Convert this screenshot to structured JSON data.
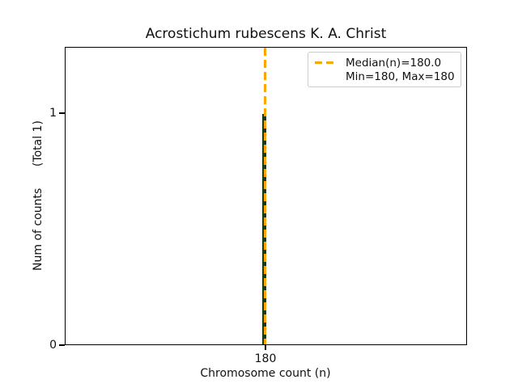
{
  "title": "Acrostichum rubescens K. A. Christ",
  "axes": {
    "xlabel": "Chromosome count (n)",
    "ylabel": "Num of counts      (Total 1)",
    "xticks": [
      "180"
    ],
    "yticks": [
      "0",
      "1"
    ]
  },
  "legend": {
    "items": [
      {
        "label": "Median(n)=180.0",
        "marker": "orange-dashed-line"
      },
      {
        "label": "Min=180, Max=180",
        "marker": "none"
      }
    ]
  },
  "colors": {
    "median_line": "#ffa500",
    "bar": "#17391c",
    "spine": "#000000",
    "legend_border": "#cccccc",
    "background": "#ffffff"
  },
  "chart_data": {
    "type": "bar",
    "title": "Acrostichum rubescens K. A. Christ",
    "xlabel": "Chromosome count (n)",
    "ylabel": "Num of counts (Total 1)",
    "x": [
      180
    ],
    "values": [
      1
    ],
    "total_counts": 1,
    "median": 180.0,
    "min": 180,
    "max": 180,
    "xticks": [
      180
    ],
    "yticks": [
      0,
      1
    ],
    "ylim": [
      0,
      1.29
    ],
    "bar_color": "#17391c",
    "median_line": {
      "x": 180,
      "color": "#ffa500",
      "style": "dashed"
    },
    "grid": false,
    "legend_position": "upper right"
  }
}
